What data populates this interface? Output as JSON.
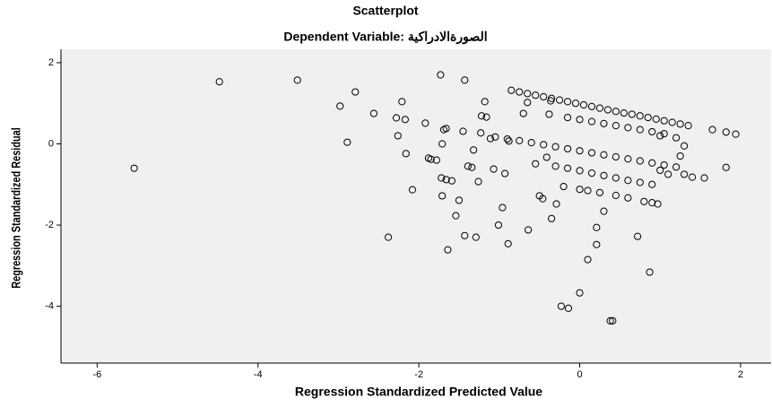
{
  "chart_data": {
    "type": "scatter",
    "title": "Scatterplot",
    "subtitle": "Dependent Variable: الصورةالادراكية",
    "xlabel": "Regression Standardized Predicted Value",
    "ylabel": "Regression Standardized Residual",
    "marker_color": "#000000",
    "background": "#f0f0f0",
    "xlim": [
      -6.45,
      2.38
    ],
    "ylim": [
      -5.4,
      2.33
    ],
    "xticks": [
      -6,
      -4,
      -2,
      0,
      2
    ],
    "yticks": [
      2,
      0,
      -2,
      -4
    ],
    "x": [
      -5.54,
      -4.48,
      -3.51,
      -2.98,
      -2.89,
      -2.79,
      -2.56,
      -2.38,
      -2.28,
      -2.26,
      -2.21,
      -2.17,
      -2.16,
      -2.08,
      -1.92,
      -1.88,
      -1.85,
      -1.78,
      -1.73,
      -1.71,
      -1.69,
      -1.71,
      -1.72,
      -1.66,
      -1.66,
      -1.64,
      -1.59,
      -1.54,
      -1.5,
      -1.45,
      -1.43,
      -1.43,
      -1.39,
      -1.34,
      -1.32,
      -1.29,
      -1.26,
      -1.23,
      -1.22,
      -1.18,
      -1.11,
      -1.07,
      -1.01,
      -0.96,
      -0.89,
      -0.88,
      -0.93,
      -0.7,
      -0.64,
      -0.55,
      -0.5,
      -0.46,
      -0.41,
      -0.38,
      -0.35,
      -0.29,
      -0.23,
      -0.14,
      0,
      0.1,
      0.21,
      0.21,
      0.3,
      0.38,
      0.41,
      0.72,
      0.87,
      0.97,
      1.55,
      1.82,
      1.65,
      1.82,
      1.94,
      1.4,
      -0.36,
      -0.65,
      -1.16,
      -0.85,
      -0.75,
      -0.65,
      -0.55,
      -0.45,
      -0.35,
      -0.25,
      -0.15,
      -0.05,
      0.05,
      0.15,
      0.25,
      0.35,
      0.45,
      0.55,
      0.65,
      0.75,
      0.85,
      0.95,
      1.05,
      1.15,
      1.25,
      1.35,
      -0.15,
      0,
      0.15,
      0.3,
      0.45,
      0.6,
      0.75,
      0.9,
      1.05,
      -1.05,
      -0.9,
      -0.75,
      -0.6,
      -0.45,
      -0.3,
      -0.15,
      0,
      0.15,
      0.3,
      0.45,
      0.6,
      0.75,
      0.9,
      1.05,
      1.2,
      -0.3,
      -0.15,
      0,
      0.15,
      0.3,
      0.45,
      0.6,
      0.75,
      0.9,
      -0.2,
      0,
      0.1,
      0.25,
      0.45,
      0.6,
      0.8,
      0.9,
      1.0,
      1.2,
      1.3,
      1.25,
      1.0,
      1.1,
      1.3
    ],
    "y": [
      -0.6,
      1.53,
      1.57,
      0.93,
      0.04,
      1.28,
      0.75,
      -2.3,
      0.64,
      0.2,
      1.04,
      0.6,
      -0.24,
      -1.13,
      0.51,
      -0.35,
      -0.38,
      -0.4,
      1.7,
      0,
      0.35,
      -1.28,
      -0.84,
      -0.88,
      0.38,
      -2.61,
      -0.91,
      -1.77,
      -1.39,
      0.31,
      1.57,
      -2.26,
      -0.55,
      -0.58,
      -0.15,
      -2.3,
      -0.93,
      0.27,
      0.69,
      1.04,
      0.13,
      -0.62,
      -2,
      -1.57,
      -2.46,
      0.07,
      -0.73,
      0.75,
      -2.12,
      -0.49,
      -1.28,
      -1.35,
      -0.33,
      0.73,
      -1.84,
      -1.48,
      -4,
      -4.05,
      -3.67,
      -2.85,
      -2.48,
      -2.06,
      -1.66,
      -4.36,
      -4.36,
      -2.28,
      -3.16,
      -1.48,
      -0.84,
      -0.58,
      0.35,
      0.29,
      0.24,
      -0.82,
      1.06,
      1.02,
      0.66,
      1.32,
      1.28,
      1.24,
      1.2,
      1.16,
      1.12,
      1.08,
      1.04,
      1,
      0.96,
      0.92,
      0.88,
      0.84,
      0.8,
      0.76,
      0.73,
      0.69,
      0.65,
      0.61,
      0.57,
      0.53,
      0.49,
      0.45,
      0.65,
      0.6,
      0.55,
      0.5,
      0.45,
      0.4,
      0.35,
      0.3,
      0.25,
      0.17,
      0.12,
      0.08,
      0.03,
      -0.02,
      -0.07,
      -0.12,
      -0.17,
      -0.22,
      -0.27,
      -0.32,
      -0.37,
      -0.42,
      -0.47,
      -0.52,
      -0.57,
      -0.55,
      -0.6,
      -0.66,
      -0.72,
      -0.78,
      -0.84,
      -0.9,
      -0.95,
      -1,
      -1.05,
      -1.12,
      -1.15,
      -1.2,
      -1.27,
      -1.33,
      -1.42,
      -1.45,
      0.2,
      0.15,
      -0.05,
      -0.3,
      -0.65,
      -0.75,
      -0.75
    ]
  }
}
